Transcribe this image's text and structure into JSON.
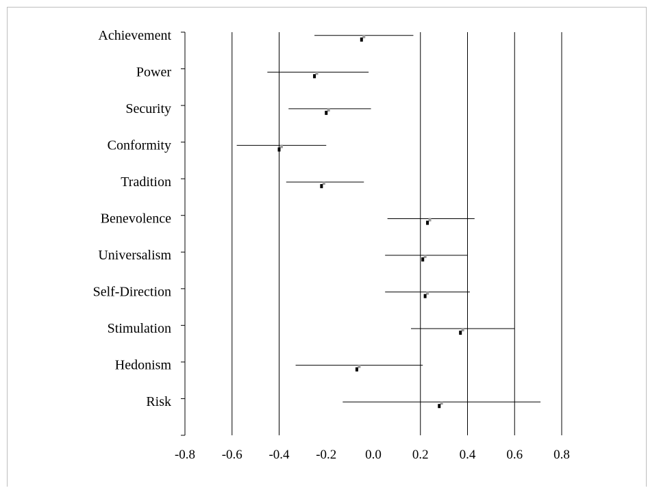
{
  "chart_data": {
    "type": "forest",
    "title": "",
    "xlabel": "",
    "ylabel": "",
    "xlim": [
      -0.8,
      0.8
    ],
    "x_ticks": [
      "-0.8",
      "-0.6",
      "-0.4",
      "-0.2",
      "0.0",
      "0.2",
      "0.4",
      "0.6",
      "0.8"
    ],
    "x_tick_values": [
      -0.8,
      -0.6,
      -0.4,
      -0.2,
      0.0,
      0.2,
      0.4,
      0.6,
      0.8
    ],
    "vertical_gridlines": [
      -0.6,
      -0.4,
      0.2,
      0.4,
      0.6
    ],
    "categories": [
      "Achievement",
      "Power",
      "Security",
      "Conformity",
      "Tradition",
      "Benevolence",
      "Universalism",
      "Self-Direction",
      "Stimulation",
      "Hedonism",
      "Risk"
    ],
    "series": [
      {
        "values": [
          -0.05,
          -0.25,
          -0.2,
          -0.4,
          -0.22,
          0.23,
          0.21,
          0.22,
          0.37,
          -0.07,
          0.28
        ]
      },
      {
        "values": [
          -0.04,
          -0.24,
          -0.19,
          -0.39,
          -0.21,
          0.24,
          0.22,
          0.23,
          0.38,
          -0.06,
          0.29
        ]
      }
    ],
    "ci_low": [
      -0.25,
      -0.45,
      -0.36,
      -0.58,
      -0.37,
      0.06,
      0.05,
      0.05,
      0.16,
      -0.33,
      -0.13
    ],
    "ci_high": [
      0.17,
      -0.02,
      -0.01,
      -0.2,
      -0.04,
      0.43,
      0.4,
      0.41,
      0.6,
      0.21,
      0.71
    ],
    "colors": {
      "line": "#000000",
      "grid": "#000000",
      "marker_primary": "#000000",
      "marker_secondary": "#9a9a9a",
      "frame": "#bdbdbd"
    },
    "grid": true
  }
}
